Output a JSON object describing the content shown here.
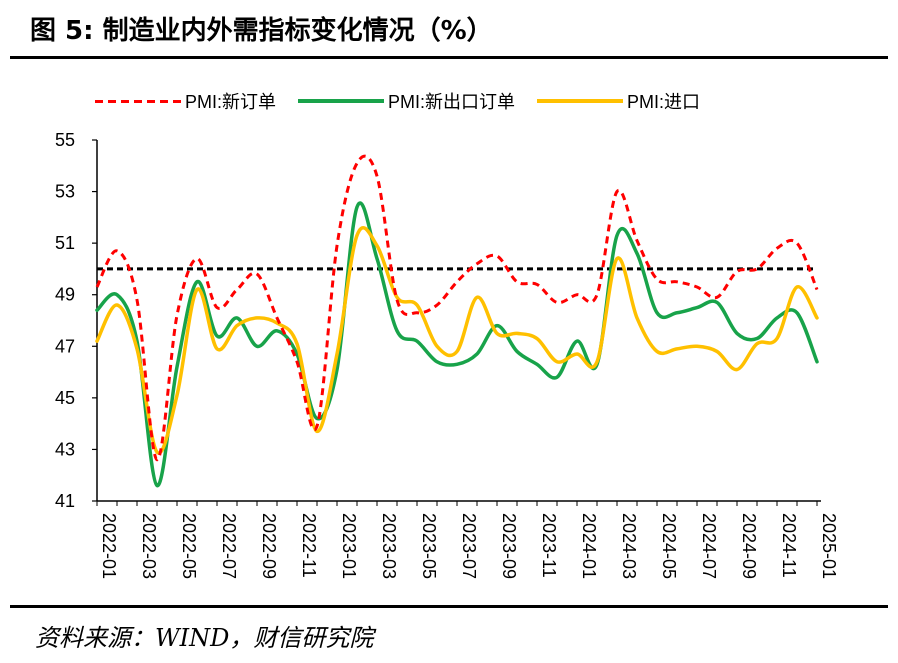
{
  "header": {
    "title": "图 5:  制造业内外需指标变化情况（%）"
  },
  "footer": {
    "source": "资料来源：WIND，财信研究院"
  },
  "legend": {
    "items": [
      {
        "label": "PMI:新订单",
        "color": "#ff0000",
        "style": "dashed"
      },
      {
        "label": "PMI:新出口订单",
        "color": "#18a34a",
        "style": "solid"
      },
      {
        "label": "PMI:进口",
        "color": "#ffc000",
        "style": "solid"
      }
    ]
  },
  "chart_data": {
    "type": "line",
    "x": [
      "2022-01",
      "2022-02",
      "2022-03",
      "2022-04",
      "2022-05",
      "2022-06",
      "2022-07",
      "2022-08",
      "2022-09",
      "2022-10",
      "2022-11",
      "2022-12",
      "2023-01",
      "2023-02",
      "2023-03",
      "2023-04",
      "2023-05",
      "2023-06",
      "2023-07",
      "2023-08",
      "2023-09",
      "2023-10",
      "2023-11",
      "2023-12",
      "2024-01",
      "2024-02",
      "2024-03",
      "2024-04",
      "2024-05",
      "2024-06",
      "2024-07",
      "2024-08",
      "2024-09",
      "2024-10",
      "2024-11",
      "2024-12",
      "2025-01"
    ],
    "x_tick_labels": [
      "2022-01",
      "2022-03",
      "2022-05",
      "2022-07",
      "2022-09",
      "2022-11",
      "2023-01",
      "2023-03",
      "2023-05",
      "2023-07",
      "2023-09",
      "2023-11",
      "2024-01",
      "2024-03",
      "2024-05",
      "2024-07",
      "2024-09",
      "2024-11",
      "2025-01"
    ],
    "series": [
      {
        "name": "PMI:新订单",
        "color": "#ff0000",
        "dash": true,
        "values": [
          49.3,
          50.7,
          48.8,
          42.6,
          48.2,
          50.4,
          48.5,
          49.2,
          49.8,
          48.1,
          46.4,
          43.9,
          50.9,
          54.1,
          53.6,
          48.8,
          48.3,
          48.6,
          49.5,
          50.2,
          50.5,
          49.5,
          49.4,
          48.7,
          49.0,
          49.0,
          53.0,
          51.1,
          49.6,
          49.5,
          49.3,
          48.9,
          49.9,
          50.0,
          50.8,
          51.0,
          49.2
        ]
      },
      {
        "name": "PMI:新出口订单",
        "color": "#18a34a",
        "dash": false,
        "values": [
          48.4,
          49.0,
          47.2,
          41.6,
          46.2,
          49.5,
          47.4,
          48.1,
          47.0,
          47.6,
          46.7,
          44.2,
          46.1,
          52.4,
          50.4,
          47.6,
          47.2,
          46.4,
          46.3,
          46.7,
          47.8,
          46.8,
          46.3,
          45.8,
          47.2,
          46.3,
          51.3,
          50.6,
          48.3,
          48.3,
          48.5,
          48.7,
          47.5,
          47.3,
          48.1,
          48.3,
          46.4
        ]
      },
      {
        "name": "PMI:进口",
        "color": "#ffc000",
        "dash": false,
        "values": [
          47.2,
          48.6,
          46.9,
          42.9,
          45.1,
          49.2,
          46.9,
          47.8,
          48.1,
          47.9,
          47.1,
          43.7,
          46.7,
          51.3,
          50.9,
          48.9,
          48.6,
          47.0,
          46.8,
          48.9,
          47.5,
          47.5,
          47.3,
          46.4,
          46.7,
          46.4,
          50.4,
          48.1,
          46.8,
          46.9,
          47.0,
          46.8,
          46.1,
          47.1,
          47.3,
          49.3,
          48.1
        ]
      }
    ],
    "reference_line": {
      "y": 50,
      "color": "#000000",
      "dash": true
    },
    "ylim": [
      41,
      55
    ],
    "yticks": [
      41,
      43,
      45,
      47,
      49,
      51,
      53,
      55
    ],
    "title": "",
    "xlabel": "",
    "ylabel": "",
    "legend_position": "top"
  }
}
